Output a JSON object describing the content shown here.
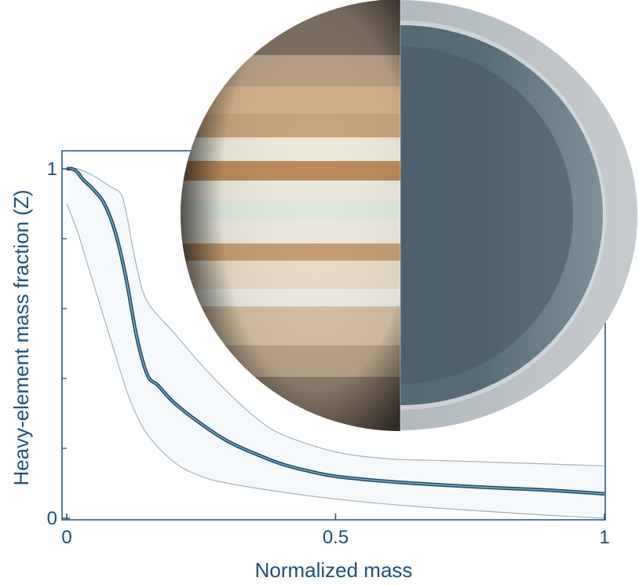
{
  "chart_data": {
    "type": "line",
    "title": "",
    "xlabel": "Normalized mass",
    "ylabel": "Heavy-element mass fraction (Z)",
    "xlim": [
      0,
      1
    ],
    "ylim": [
      0,
      1
    ],
    "x_ticks": [
      {
        "value": 0,
        "label": "0"
      },
      {
        "value": 0.5,
        "label": "0.5"
      },
      {
        "value": 1,
        "label": "1"
      }
    ],
    "y_ticks": [
      {
        "value": 0,
        "label": "0"
      },
      {
        "value": 1,
        "label": "1"
      }
    ],
    "y_minor_ticks": [
      0.2,
      0.4,
      0.6,
      0.8
    ],
    "grid": false,
    "colors": {
      "median_line": "#1f4e6b",
      "band_edge": "#9fb3bf",
      "band_fill": "#f5f9fc",
      "axis": "#1f4e79"
    },
    "series": [
      {
        "role": "median",
        "x": [
          0,
          0.01,
          0.02,
          0.03,
          0.05,
          0.07,
          0.09,
          0.11,
          0.13,
          0.15,
          0.17,
          0.2,
          0.25,
          0.3,
          0.35,
          0.4,
          0.45,
          0.5,
          0.6,
          0.7,
          0.8,
          0.9,
          1.0
        ],
        "y": [
          1.0,
          1.0,
          0.99,
          0.97,
          0.94,
          0.9,
          0.82,
          0.69,
          0.52,
          0.41,
          0.38,
          0.33,
          0.27,
          0.22,
          0.185,
          0.155,
          0.135,
          0.12,
          0.105,
          0.095,
          0.087,
          0.08,
          0.07
        ]
      },
      {
        "role": "upper-bound",
        "x": [
          0,
          0.02,
          0.05,
          0.08,
          0.1,
          0.11,
          0.13,
          0.15,
          0.2,
          0.25,
          0.3,
          0.35,
          0.4,
          0.5,
          0.6,
          0.7,
          0.8,
          0.9,
          1.0
        ],
        "y": [
          1.0,
          1.0,
          0.98,
          0.95,
          0.93,
          0.88,
          0.72,
          0.62,
          0.53,
          0.44,
          0.36,
          0.29,
          0.24,
          0.19,
          0.17,
          0.165,
          0.16,
          0.155,
          0.15
        ]
      },
      {
        "role": "lower-bound",
        "x": [
          0,
          0.02,
          0.04,
          0.06,
          0.08,
          0.1,
          0.12,
          0.15,
          0.2,
          0.25,
          0.3,
          0.4,
          0.5,
          0.6,
          0.7,
          0.8,
          0.9,
          1.0
        ],
        "y": [
          0.9,
          0.82,
          0.72,
          0.62,
          0.52,
          0.42,
          0.33,
          0.24,
          0.16,
          0.12,
          0.1,
          0.075,
          0.055,
          0.04,
          0.028,
          0.018,
          0.008,
          0.0
        ]
      }
    ]
  },
  "illustration": {
    "name": "jupiter-half-cutaway",
    "colors": {
      "surface_band_light": "#f1ede2",
      "surface_band_tan": "#c9a67c",
      "interior_core": "#c05a38",
      "interior_envelope": "#4d6470",
      "outer_shell": "#bcc3c7"
    }
  }
}
